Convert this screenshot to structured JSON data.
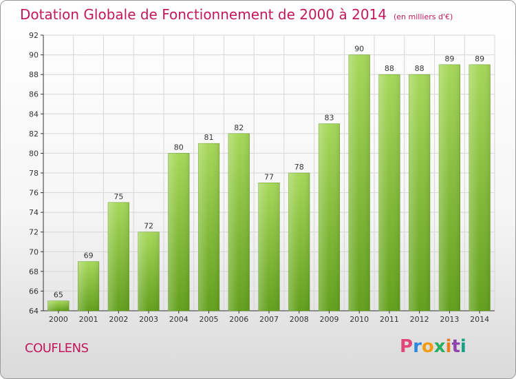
{
  "chart_data": {
    "type": "bar",
    "title": "Dotation Globale de Fonctionnement de 2000 à 2014",
    "subtitle": "(en milliers d'€)",
    "categories": [
      "2000",
      "2001",
      "2002",
      "2003",
      "2004",
      "2005",
      "2006",
      "2007",
      "2008",
      "2009",
      "2010",
      "2011",
      "2012",
      "2013",
      "2014"
    ],
    "values": [
      65,
      69,
      75,
      72,
      80,
      81,
      82,
      77,
      78,
      83,
      90,
      88,
      88,
      89,
      89
    ],
    "ylim": [
      64,
      92
    ],
    "yticks": [
      64,
      66,
      68,
      70,
      72,
      74,
      76,
      78,
      80,
      82,
      84,
      86,
      88,
      90,
      92
    ],
    "xlabel": "",
    "ylabel": "",
    "grid": true,
    "bar_color": "#7cb82f",
    "legend": "none"
  },
  "footer": {
    "commune": "COUFLENS"
  },
  "logo": {
    "text": "Proxiti",
    "colors": [
      "#e0457b",
      "#2e86de",
      "#f39c12",
      "#27ae60",
      "#e67e22",
      "#8e44ad",
      "#16a085"
    ]
  },
  "colors": {
    "title": "#c2185b",
    "grid": "#d6d6d6",
    "axis": "#333333"
  }
}
